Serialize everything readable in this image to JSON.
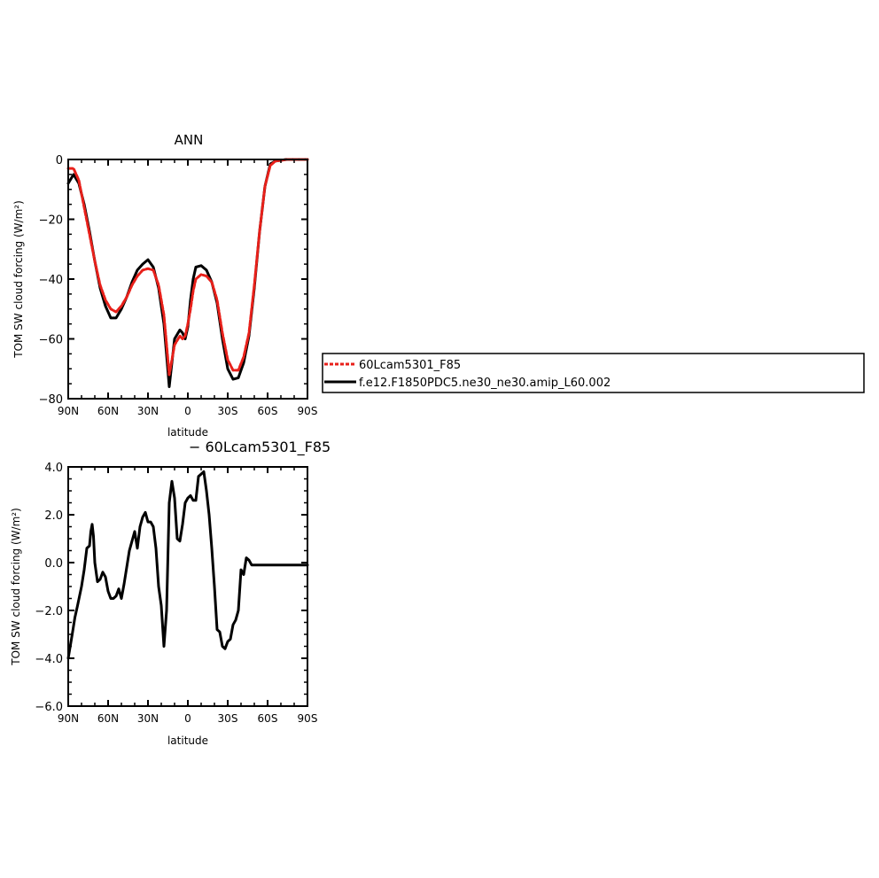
{
  "chart_data": [
    {
      "type": "line",
      "title": "ANN",
      "xlabel": "latitude",
      "ylabel": "TOM SW cloud forcing (W/m²)",
      "xlim": [
        90,
        -90
      ],
      "ylim": [
        -80,
        0
      ],
      "x_ticks": [
        90,
        60,
        30,
        0,
        -30,
        -60,
        -90
      ],
      "x_tick_labels": [
        "90N",
        "60N",
        "30N",
        "0",
        "30S",
        "60S",
        "90S"
      ],
      "y_ticks": [
        0,
        -20,
        -40,
        -60,
        -80
      ],
      "y_tick_labels": [
        "0",
        "−20",
        "−40",
        "−60",
        "−80"
      ],
      "legend_position": "right",
      "series": [
        {
          "name": "60Lcam5301_F85",
          "color": "#e8201a",
          "style": "dashed",
          "x": [
            90,
            86,
            82,
            78,
            74,
            70,
            66,
            62,
            58,
            54,
            50,
            46,
            42,
            38,
            34,
            30,
            26,
            22,
            18,
            14,
            10,
            6,
            4,
            2,
            0,
            -2,
            -4,
            -6,
            -10,
            -14,
            -18,
            -22,
            -26,
            -30,
            -34,
            -38,
            -42,
            -46,
            -50,
            -54,
            -58,
            -62,
            -66,
            -70,
            -74,
            -78,
            -82,
            -86,
            -90
          ],
          "y": [
            -3,
            -3,
            -7,
            -16,
            -25,
            -34,
            -42,
            -47,
            -50,
            -51,
            -49,
            -46,
            -42,
            -39,
            -37,
            -36.5,
            -37,
            -42,
            -52,
            -72,
            -62,
            -59,
            -60,
            -59,
            -55,
            -50,
            -44,
            -40,
            -38.5,
            -39,
            -41,
            -47,
            -58,
            -67,
            -70.5,
            -70.5,
            -66,
            -58,
            -42,
            -24,
            -9,
            -2,
            -0.5,
            -0.3,
            0,
            0,
            0,
            0,
            0
          ]
        },
        {
          "name": "f.e12.F1850PDC5.ne30_ne30.amip_L60.002",
          "color": "#000000",
          "style": "solid",
          "x": [
            90,
            86,
            82,
            78,
            74,
            70,
            66,
            62,
            58,
            54,
            50,
            46,
            42,
            38,
            34,
            30,
            26,
            22,
            18,
            14,
            10,
            6,
            4,
            2,
            0,
            -2,
            -4,
            -6,
            -10,
            -14,
            -18,
            -22,
            -26,
            -30,
            -34,
            -38,
            -42,
            -46,
            -50,
            -54,
            -58,
            -62,
            -66,
            -70,
            -74,
            -78,
            -82,
            -86,
            -90
          ],
          "y": [
            -8,
            -5,
            -8,
            -15,
            -24,
            -34,
            -43,
            -49,
            -53,
            -53,
            -50,
            -46,
            -41,
            -37,
            -35,
            -33.5,
            -36,
            -43,
            -55,
            -76,
            -60,
            -57,
            -58,
            -60,
            -56,
            -47,
            -40,
            -36,
            -35.5,
            -37,
            -41,
            -48,
            -60,
            -70,
            -73.5,
            -73,
            -68,
            -59,
            -43,
            -24,
            -9,
            -1.5,
            -0.5,
            -0.3,
            0,
            0,
            0,
            0,
            0
          ]
        }
      ],
      "legend": [
        "60Lcam5301_F85",
        "f.e12.F1850PDC5.ne30_ne30.amip_L60.002"
      ]
    },
    {
      "type": "line",
      "title": "− 60Lcam5301_F85",
      "xlabel": "latitude",
      "ylabel": "TOM SW cloud forcing (W/m²)",
      "xlim": [
        90,
        -90
      ],
      "ylim": [
        -6,
        4
      ],
      "x_ticks": [
        90,
        60,
        30,
        0,
        -30,
        -60,
        -90
      ],
      "x_tick_labels": [
        "90N",
        "60N",
        "30N",
        "0",
        "30S",
        "60S",
        "90S"
      ],
      "y_ticks": [
        4,
        2,
        0,
        -2,
        -4,
        -6
      ],
      "y_tick_labels": [
        "4.0",
        "2.0",
        "0.0",
        "−2.0",
        "−4.0",
        "−6.0"
      ],
      "series": [
        {
          "color": "#000000",
          "style": "solid",
          "x": [
            90,
            87,
            85,
            83,
            80,
            78,
            76,
            74,
            73,
            72,
            71,
            70,
            68,
            66,
            64,
            62,
            60,
            58,
            56,
            54,
            52,
            50,
            48,
            46,
            44,
            42,
            40,
            38,
            36,
            34,
            32,
            30,
            28,
            26,
            24,
            22,
            20,
            18,
            16,
            14,
            12,
            10,
            8,
            6,
            4,
            2,
            0,
            -2,
            -4,
            -6,
            -8,
            -10,
            -12,
            -14,
            -16,
            -18,
            -20,
            -22,
            -24,
            -26,
            -28,
            -30,
            -32,
            -34,
            -36,
            -38,
            -40,
            -42,
            -44,
            -46,
            -48,
            -50,
            -52,
            -54,
            -56,
            -58,
            -60,
            -62,
            -64,
            -66,
            -68,
            -70,
            -72,
            -74,
            -76,
            -78,
            -80,
            -82,
            -84,
            -86,
            -88,
            -90
          ],
          "y": [
            -4.0,
            -3.0,
            -2.3,
            -1.8,
            -1.0,
            -0.3,
            0.6,
            0.7,
            1.3,
            1.6,
            1.1,
            0.0,
            -0.8,
            -0.7,
            -0.4,
            -0.6,
            -1.2,
            -1.5,
            -1.5,
            -1.4,
            -1.1,
            -1.5,
            -0.9,
            -0.2,
            0.5,
            0.9,
            1.3,
            0.6,
            1.5,
            1.9,
            2.1,
            1.7,
            1.7,
            1.5,
            0.6,
            -1.0,
            -1.8,
            -3.5,
            -2.0,
            2.5,
            3.4,
            2.7,
            1.0,
            0.9,
            1.6,
            2.5,
            2.7,
            2.8,
            2.6,
            2.6,
            3.6,
            3.7,
            3.8,
            3.0,
            2.0,
            0.6,
            -1.0,
            -2.8,
            -2.9,
            -3.5,
            -3.6,
            -3.3,
            -3.2,
            -2.6,
            -2.4,
            -2.0,
            -0.3,
            -0.5,
            0.2,
            0.1,
            -0.1,
            -0.1,
            -0.1,
            -0.1,
            -0.1,
            -0.1,
            -0.1,
            -0.1,
            -0.1,
            -0.1,
            -0.1,
            -0.1,
            -0.1,
            -0.1,
            -0.1,
            -0.1,
            -0.1,
            -0.1,
            -0.1,
            -0.1,
            -0.1,
            -0.1
          ]
        }
      ]
    }
  ]
}
